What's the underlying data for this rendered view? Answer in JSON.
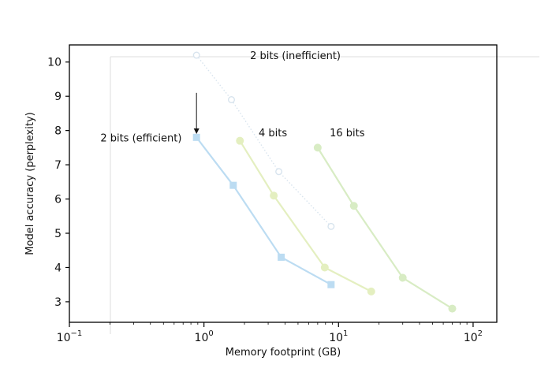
{
  "chart_data": {
    "type": "line",
    "xscale": "log",
    "xlabel": "Memory footprint (GB)",
    "ylabel": "Model accuracy (perplexity)",
    "xlim": [
      0.1,
      150
    ],
    "ylim": [
      2.4,
      10.5
    ],
    "x_ticks": [
      {
        "value": 0.1,
        "base": "10",
        "exp": "−1"
      },
      {
        "value": 1,
        "base": "10",
        "exp": "0"
      },
      {
        "value": 10,
        "base": "10",
        "exp": "1"
      },
      {
        "value": 100,
        "base": "10",
        "exp": "2"
      }
    ],
    "y_ticks": [
      3,
      4,
      5,
      6,
      7,
      8,
      9,
      10
    ],
    "grid": false,
    "series": [
      {
        "key": "2bit-inefficient",
        "color": "#d8e4ee",
        "style": "dotted",
        "marker": "hollow-circle",
        "x": [
          0.88,
          1.6,
          3.6,
          8.8
        ],
        "y": [
          10.2,
          8.9,
          6.8,
          5.2
        ]
      },
      {
        "key": "2bit-efficient",
        "color": "#bcdcf2",
        "style": "solid",
        "marker": "square",
        "x": [
          0.88,
          1.65,
          3.75,
          8.8
        ],
        "y": [
          7.8,
          6.4,
          4.3,
          3.5
        ]
      },
      {
        "key": "4bit",
        "color": "#e4efc0",
        "style": "solid",
        "marker": "circle",
        "x": [
          1.85,
          3.3,
          7.9,
          17.5
        ],
        "y": [
          7.7,
          6.1,
          4.0,
          3.3
        ]
      },
      {
        "key": "16bit",
        "color": "#d8ecc4",
        "style": "solid",
        "marker": "circle",
        "x": [
          7.0,
          13.0,
          30.0,
          70.0
        ],
        "y": [
          7.5,
          5.8,
          3.7,
          2.8
        ]
      }
    ],
    "annotations": [
      {
        "key": "ann-2bit-inefficient",
        "text": "2 bits (inefficient)",
        "x": 2.2,
        "y": 10.2
      },
      {
        "key": "ann-2bit-efficient",
        "text": "2 bits (efficient)",
        "x": 0.17,
        "y": 7.8
      },
      {
        "key": "ann-4bit",
        "text": "4 bits",
        "x": 2.55,
        "y": 7.95
      },
      {
        "key": "ann-16bit",
        "text": "16 bits",
        "x": 8.6,
        "y": 7.95
      }
    ],
    "arrow": {
      "x": 0.88,
      "y_from": 9.1,
      "y_to": 7.9
    }
  }
}
